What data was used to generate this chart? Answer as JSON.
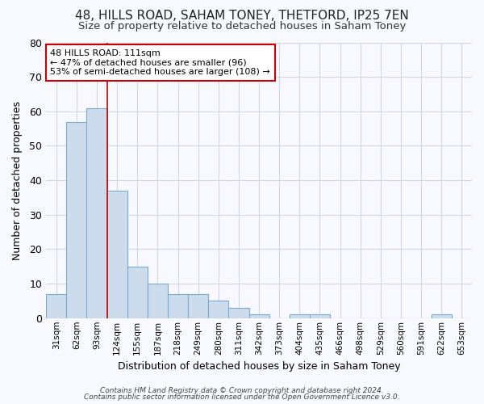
{
  "title1": "48, HILLS ROAD, SAHAM TONEY, THETFORD, IP25 7EN",
  "title2": "Size of property relative to detached houses in Saham Toney",
  "xlabel": "Distribution of detached houses by size in Saham Toney",
  "ylabel": "Number of detached properties",
  "categories": [
    "31sqm",
    "62sqm",
    "93sqm",
    "124sqm",
    "155sqm",
    "187sqm",
    "218sqm",
    "249sqm",
    "280sqm",
    "311sqm",
    "342sqm",
    "373sqm",
    "404sqm",
    "435sqm",
    "466sqm",
    "498sqm",
    "529sqm",
    "560sqm",
    "591sqm",
    "622sqm",
    "653sqm"
  ],
  "values": [
    7,
    57,
    61,
    37,
    15,
    10,
    7,
    7,
    5,
    3,
    1,
    0,
    1,
    1,
    0,
    0,
    0,
    0,
    0,
    1,
    0
  ],
  "bar_color": "#ccdcec",
  "bar_edge_color": "#7aaacc",
  "grid_color": "#d0d8e0",
  "vline_x": 2.5,
  "vline_color": "#cc0000",
  "annotation_text": "48 HILLS ROAD: 111sqm\n← 47% of detached houses are smaller (96)\n53% of semi-detached houses are larger (108) →",
  "annotation_box_color": "#ffffff",
  "annotation_box_edge": "#cc0000",
  "ylim": [
    0,
    80
  ],
  "yticks": [
    0,
    10,
    20,
    30,
    40,
    50,
    60,
    70,
    80
  ],
  "footer1": "Contains HM Land Registry data © Crown copyright and database right 2024.",
  "footer2": "Contains public sector information licensed under the Open Government Licence v3.0.",
  "bg_color": "#f8f8ff",
  "title1_fontsize": 11,
  "title2_fontsize": 9.5
}
